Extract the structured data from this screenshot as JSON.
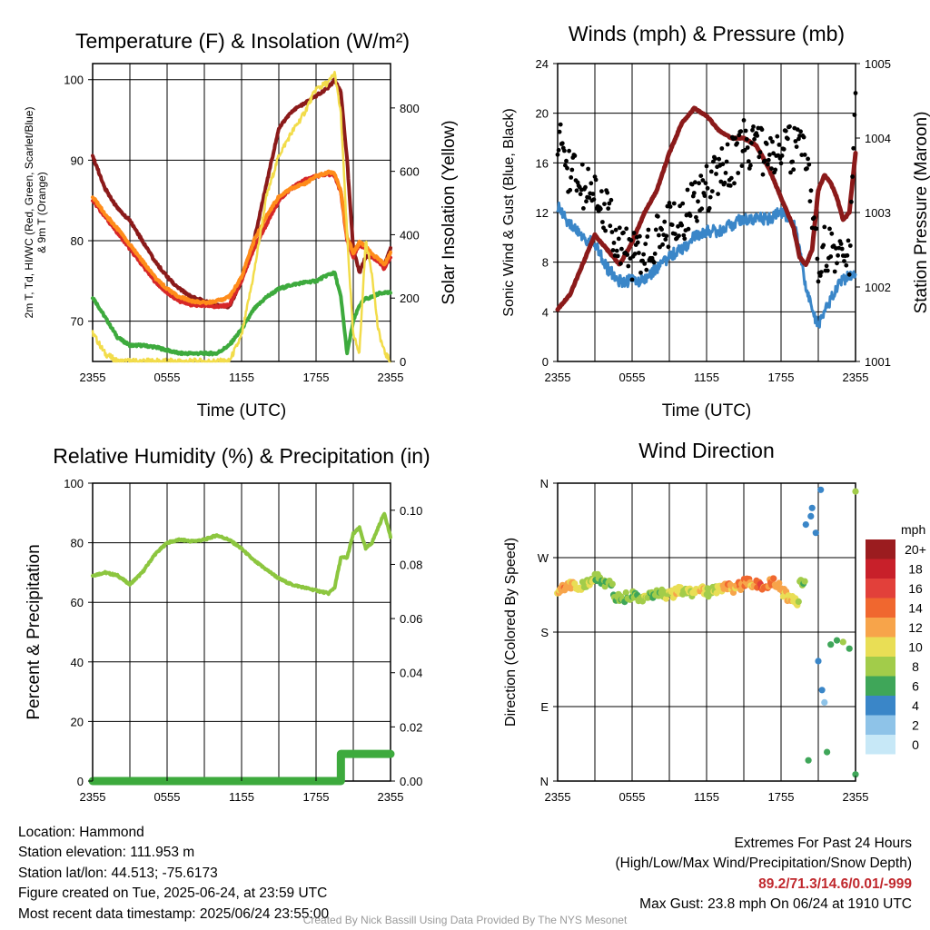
{
  "panels": {
    "temperature": {
      "title": "Temperature (F) & Insolation (W/m²)",
      "y_left_label_line1": "2m T, Td, HI/WC (Red, Green, Scarlet/Blue)",
      "y_left_label_line2": "& 9m T (Orange)",
      "y_right_label": "Solar Insolation (Yellow)",
      "x_label": "Time (UTC)"
    },
    "winds": {
      "title": "Winds (mph) & Pressure (mb)",
      "y_left_label": "Sonic Wind & Gust (Blue, Black)",
      "y_right_label": "Station Pressure (Maroon)",
      "x_label": "Time (UTC)"
    },
    "humidity": {
      "title": "Relative Humidity (%) & Precipitation (in)",
      "y_left_label": "Percent & Precipitation"
    },
    "direction": {
      "title": "Wind Direction",
      "y_left_label": "Direction (Colored By Speed)",
      "colorbar_title": "mph",
      "colorbar_labels": [
        "20+",
        "18",
        "16",
        "14",
        "12",
        "10",
        "8",
        "6",
        "4",
        "2",
        "0"
      ],
      "colorbar_colors": [
        "#9b1c1f",
        "#c8202a",
        "#e2403a",
        "#f0672f",
        "#f7a44a",
        "#e9de55",
        "#a2cc4a",
        "#3fa659",
        "#3a86c8",
        "#8ec3e8",
        "#c7e8f7"
      ]
    }
  },
  "chart_data": [
    {
      "type": "line",
      "id": "temperature",
      "title": "Temperature (F) & Insolation (W/m²)",
      "xlabel": "Time (UTC)",
      "x_ticks": [
        "2355",
        "0555",
        "1155",
        "1755",
        "2355"
      ],
      "ylim": [
        65,
        102
      ],
      "y_ticks": [
        "70",
        "80",
        "90",
        "100"
      ],
      "y2lim": [
        0,
        940
      ],
      "y2_ticks": [
        "0",
        "200",
        "400",
        "600",
        "800"
      ],
      "x_hours": [
        0,
        1,
        2,
        3,
        4,
        5,
        6,
        7,
        8,
        9,
        10,
        11,
        12,
        13,
        14,
        15,
        16,
        17,
        18,
        19,
        19.5,
        20,
        20.5,
        21,
        21.5,
        22,
        22.5,
        23,
        23.5,
        24
      ],
      "series": [
        {
          "color": "#8b1a1a",
          "axis": "left",
          "values": [
            90.5,
            86.5,
            84,
            82.5,
            80,
            77.5,
            75.5,
            74,
            73,
            72.5,
            72,
            71.8,
            75,
            80,
            87,
            94,
            96,
            97,
            98,
            99,
            100,
            98.5,
            90,
            79,
            76,
            78,
            78,
            77.5,
            77,
            79
          ]
        },
        {
          "color": "#d62728",
          "axis": "left",
          "values": [
            85,
            83,
            81,
            79,
            77,
            75,
            73.5,
            72.5,
            72,
            72,
            71.8,
            72,
            75,
            79,
            82,
            85,
            86.5,
            87.5,
            88,
            88.3,
            88,
            86,
            80,
            78,
            79.5,
            79,
            78,
            77.5,
            76.5,
            78
          ]
        },
        {
          "color": "#ff8c1a",
          "axis": "left",
          "values": [
            85.5,
            83.3,
            81.5,
            79.5,
            77.5,
            75.5,
            74,
            73,
            72.5,
            72.3,
            72.5,
            73,
            75.5,
            80,
            83,
            85.5,
            86.5,
            87,
            88,
            88.5,
            88.3,
            86.2,
            80.5,
            78.5,
            79.8,
            79.3,
            78.3,
            77.8,
            77,
            78.5
          ]
        },
        {
          "color": "#3daa3d",
          "axis": "left",
          "values": [
            73,
            70.5,
            68,
            67,
            67,
            66.8,
            66.4,
            66,
            66,
            66,
            66,
            67,
            69,
            71.5,
            73,
            74,
            74.5,
            74.8,
            75,
            75.8,
            76,
            73,
            66,
            70,
            72,
            72.8,
            73,
            73.4,
            73.6,
            73.5
          ]
        },
        {
          "color": "#f2dc4a",
          "axis": "right",
          "values": [
            90,
            25,
            0,
            0,
            0,
            0,
            0,
            0,
            0,
            0,
            0,
            0,
            80,
            280,
            520,
            650,
            720,
            780,
            860,
            880,
            910,
            780,
            400,
            80,
            30,
            380,
            280,
            100,
            30,
            0
          ]
        }
      ]
    },
    {
      "type": "line",
      "id": "winds",
      "title": "Winds (mph) & Pressure (mb)",
      "xlabel": "Time (UTC)",
      "x_ticks": [
        "2355",
        "0555",
        "1155",
        "1755",
        "2355"
      ],
      "ylim": [
        0,
        24
      ],
      "y_ticks": [
        "0",
        "4",
        "8",
        "12",
        "16",
        "20",
        "24"
      ],
      "y2lim": [
        1001,
        1005
      ],
      "y2_ticks": [
        "1001",
        "1002",
        "1003",
        "1004",
        "1005"
      ],
      "x_hours": [
        0,
        1,
        2,
        3,
        4,
        5,
        6,
        7,
        8,
        9,
        10,
        11,
        12,
        13,
        14,
        15,
        16,
        17,
        18,
        19,
        19.5,
        20,
        20.5,
        21,
        21.5,
        22,
        22.5,
        23,
        23.5,
        24
      ],
      "series": [
        {
          "color": "#3a86c8",
          "axis": "left",
          "kind": "line",
          "values": [
            12.5,
            11,
            10,
            9.5,
            7.5,
            6.5,
            6.5,
            6.5,
            7.5,
            8.5,
            9,
            10,
            10.5,
            10.5,
            11,
            11.5,
            11.5,
            11.5,
            12,
            11.5,
            9,
            6,
            4,
            3,
            4,
            5,
            6,
            6.5,
            7,
            7
          ]
        },
        {
          "color": "#8b1a1a",
          "axis": "right",
          "kind": "line",
          "values": [
            1001.7,
            1001.9,
            1002.3,
            1002.7,
            1002.5,
            1002.3,
            1002.6,
            1003.0,
            1003.3,
            1003.8,
            1004.2,
            1004.4,
            1004.3,
            1004.1,
            1004.0,
            1004.0,
            1003.9,
            1003.6,
            1003.2,
            1002.8,
            1002.4,
            1002.3,
            1002.5,
            1003.3,
            1003.5,
            1003.4,
            1003.2,
            1002.9,
            1003.0,
            1003.8
          ]
        },
        {
          "color": "#000000",
          "axis": "left",
          "kind": "scatter",
          "values": [
            18,
            15,
            14,
            13.5,
            12,
            9,
            8.5,
            8.5,
            10,
            11,
            11.5,
            13,
            14,
            15,
            16,
            17.5,
            17.5,
            16.5,
            17,
            17,
            18,
            17,
            11,
            8,
            9,
            9,
            8.5,
            10,
            8,
            20.5
          ]
        }
      ]
    },
    {
      "type": "line",
      "id": "humidity",
      "title": "Relative Humidity (%) & Precipitation (in)",
      "x_ticks": [
        "2355",
        "0555",
        "1155",
        "1755",
        "2355"
      ],
      "ylim": [
        0,
        100
      ],
      "y_ticks": [
        "0",
        "20",
        "40",
        "60",
        "80",
        "100"
      ],
      "y2lim": [
        0,
        0.11
      ],
      "y2_ticks": [
        "0.00",
        "0.02",
        "0.04",
        "0.06",
        "0.08",
        "0.10"
      ],
      "x_hours": [
        0,
        1,
        2,
        3,
        4,
        5,
        6,
        7,
        8,
        9,
        10,
        11,
        12,
        13,
        14,
        15,
        16,
        17,
        18,
        19,
        19.5,
        20,
        20.5,
        21,
        21.5,
        22,
        22.5,
        23,
        23.5,
        24
      ],
      "series": [
        {
          "color": "#8cc63f",
          "axis": "left",
          "values": [
            69,
            70,
            69,
            66,
            70,
            76,
            80,
            81,
            80.5,
            81,
            82.5,
            81,
            78,
            74,
            71,
            68,
            66,
            65,
            64,
            63,
            65,
            75,
            75,
            83,
            85,
            78,
            80,
            85,
            90,
            82
          ]
        },
        {
          "color": "#3daa3d",
          "axis": "right",
          "kind": "step",
          "values": [
            0,
            0,
            0,
            0,
            0,
            0,
            0,
            0,
            0,
            0,
            0,
            0,
            0,
            0,
            0,
            0,
            0,
            0,
            0,
            0,
            0,
            0.01,
            0.01,
            0.01,
            0.01,
            0.01,
            0.01,
            0.01,
            0.01,
            0.01
          ]
        }
      ]
    },
    {
      "type": "scatter",
      "id": "direction",
      "title": "Wind Direction",
      "x_ticks": [
        "2355",
        "0555",
        "1155",
        "1755",
        "2355"
      ],
      "y_ticks": [
        "N",
        "E",
        "S",
        "W",
        "N"
      ],
      "ylim": [
        0,
        360
      ],
      "points": [
        {
          "x": 0,
          "y": 232,
          "speed": 11
        },
        {
          "x": 0.5,
          "y": 234,
          "speed": 12
        },
        {
          "x": 1,
          "y": 236,
          "speed": 11
        },
        {
          "x": 1.5,
          "y": 233,
          "speed": 10
        },
        {
          "x": 2,
          "y": 238,
          "speed": 8
        },
        {
          "x": 2.5,
          "y": 242,
          "speed": 9
        },
        {
          "x": 3,
          "y": 245,
          "speed": 7
        },
        {
          "x": 3.5,
          "y": 238,
          "speed": 6
        },
        {
          "x": 4,
          "y": 240,
          "speed": 7
        },
        {
          "x": 4.5,
          "y": 222,
          "speed": 6
        },
        {
          "x": 5,
          "y": 220,
          "speed": 6
        },
        {
          "x": 5.5,
          "y": 224,
          "speed": 7
        },
        {
          "x": 6,
          "y": 226,
          "speed": 6
        },
        {
          "x": 6.5,
          "y": 222,
          "speed": 7
        },
        {
          "x": 7,
          "y": 225,
          "speed": 8
        },
        {
          "x": 7.5,
          "y": 226,
          "speed": 6
        },
        {
          "x": 8,
          "y": 228,
          "speed": 7
        },
        {
          "x": 8.5,
          "y": 224,
          "speed": 8
        },
        {
          "x": 9,
          "y": 226,
          "speed": 9
        },
        {
          "x": 9.5,
          "y": 230,
          "speed": 10
        },
        {
          "x": 10,
          "y": 230,
          "speed": 8
        },
        {
          "x": 10.5,
          "y": 228,
          "speed": 9
        },
        {
          "x": 11,
          "y": 232,
          "speed": 10
        },
        {
          "x": 11.5,
          "y": 230,
          "speed": 11
        },
        {
          "x": 12,
          "y": 228,
          "speed": 8
        },
        {
          "x": 12.5,
          "y": 232,
          "speed": 9
        },
        {
          "x": 13,
          "y": 233,
          "speed": 10
        },
        {
          "x": 13.5,
          "y": 235,
          "speed": 12
        },
        {
          "x": 14,
          "y": 232,
          "speed": 11
        },
        {
          "x": 14.5,
          "y": 236,
          "speed": 12
        },
        {
          "x": 15,
          "y": 240,
          "speed": 13
        },
        {
          "x": 15.5,
          "y": 236,
          "speed": 11
        },
        {
          "x": 16,
          "y": 238,
          "speed": 14
        },
        {
          "x": 16.5,
          "y": 232,
          "speed": 13
        },
        {
          "x": 17,
          "y": 240,
          "speed": 12
        },
        {
          "x": 17.5,
          "y": 236,
          "speed": 11
        },
        {
          "x": 18,
          "y": 228,
          "speed": 10
        },
        {
          "x": 18.5,
          "y": 222,
          "speed": 10
        },
        {
          "x": 19,
          "y": 216,
          "speed": 9
        },
        {
          "x": 19.5,
          "y": 240,
          "speed": 7
        },
        {
          "x": 20,
          "y": 310,
          "speed": 4
        },
        {
          "x": 20.5,
          "y": 330,
          "speed": 3
        },
        {
          "x": 20.8,
          "y": 300,
          "speed": 4
        },
        {
          "x": 21,
          "y": 145,
          "speed": 4
        },
        {
          "x": 21.3,
          "y": 110,
          "speed": 3
        },
        {
          "x": 21.5,
          "y": 95,
          "speed": 2
        },
        {
          "x": 21.7,
          "y": 35,
          "speed": 5
        },
        {
          "x": 22,
          "y": 165,
          "speed": 6
        },
        {
          "x": 22.5,
          "y": 170,
          "speed": 5
        },
        {
          "x": 23,
          "y": 168,
          "speed": 7
        },
        {
          "x": 23.5,
          "y": 160,
          "speed": 6
        },
        {
          "x": 24,
          "y": 350,
          "speed": 7
        },
        {
          "x": 24,
          "y": 8,
          "speed": 6
        },
        {
          "x": 20.2,
          "y": 25,
          "speed": 5
        },
        {
          "x": 20.4,
          "y": 320,
          "speed": 4
        },
        {
          "x": 21.2,
          "y": 352,
          "speed": 3
        }
      ]
    }
  ],
  "footer": {
    "location": "Location: Hammond",
    "elevation": "Station elevation: 111.953 m",
    "latlon": "Station lat/lon: 44.513; -75.6173",
    "created": "Figure created on Tue, 2025-06-24, at 23:59 UTC",
    "recent": "Most recent data timestamp: 2025/06/24 23:55:00",
    "extremes_title": "Extremes For Past 24 Hours",
    "extremes_subtitle": "(High/Low/Max Wind/Precipitation/Snow Depth)",
    "extremes_values": "89.2/71.3/14.6/0.01/-999",
    "max_gust": "Max Gust: 23.8 mph On 06/24 at 1910 UTC",
    "credit": "Created By Nick Bassill Using Data Provided By The NYS Mesonet"
  }
}
